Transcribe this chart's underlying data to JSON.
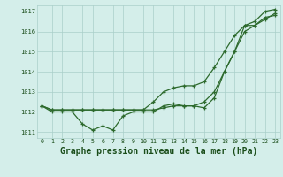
{
  "title": "Graphe pression niveau de la mer (hPa)",
  "x": [
    0,
    1,
    2,
    3,
    4,
    5,
    6,
    7,
    8,
    9,
    10,
    11,
    12,
    13,
    14,
    15,
    16,
    17,
    18,
    19,
    20,
    21,
    22,
    23
  ],
  "line_max": [
    1012.3,
    1012.1,
    1012.1,
    1012.1,
    1012.1,
    1012.1,
    1012.1,
    1012.1,
    1012.1,
    1012.1,
    1012.1,
    1012.5,
    1013.0,
    1013.2,
    1013.3,
    1013.3,
    1013.5,
    1014.2,
    1015.0,
    1015.8,
    1016.3,
    1016.5,
    1017.0,
    1017.1
  ],
  "line_mid": [
    1012.3,
    1012.1,
    1012.1,
    1012.1,
    1012.1,
    1012.1,
    1012.1,
    1012.1,
    1012.1,
    1012.1,
    1012.1,
    1012.1,
    1012.2,
    1012.3,
    1012.3,
    1012.3,
    1012.5,
    1013.0,
    1014.0,
    1015.0,
    1016.0,
    1016.3,
    1016.6,
    1016.9
  ],
  "line_min": [
    1012.3,
    1012.0,
    1012.0,
    1012.0,
    1011.4,
    1011.1,
    1011.3,
    1011.1,
    1011.8,
    1012.0,
    1012.0,
    1012.0,
    1012.3,
    1012.4,
    1012.3,
    1012.3,
    1012.2,
    1012.7,
    1014.0,
    1015.0,
    1016.3,
    1016.3,
    1016.7,
    1016.8
  ],
  "ylim": [
    1010.7,
    1017.3
  ],
  "yticks": [
    1011,
    1012,
    1013,
    1014,
    1015,
    1016,
    1017
  ],
  "xticks": [
    0,
    1,
    2,
    3,
    4,
    5,
    6,
    7,
    8,
    9,
    10,
    11,
    12,
    13,
    14,
    15,
    16,
    17,
    18,
    19,
    20,
    21,
    22,
    23
  ],
  "line_color": "#2d6a2d",
  "bg_color": "#d4eeea",
  "grid_color": "#aacfca",
  "title_color": "#1a4d1a",
  "title_fontsize": 7.0,
  "marker": "+",
  "marker_size": 3.5,
  "lw": 0.9
}
